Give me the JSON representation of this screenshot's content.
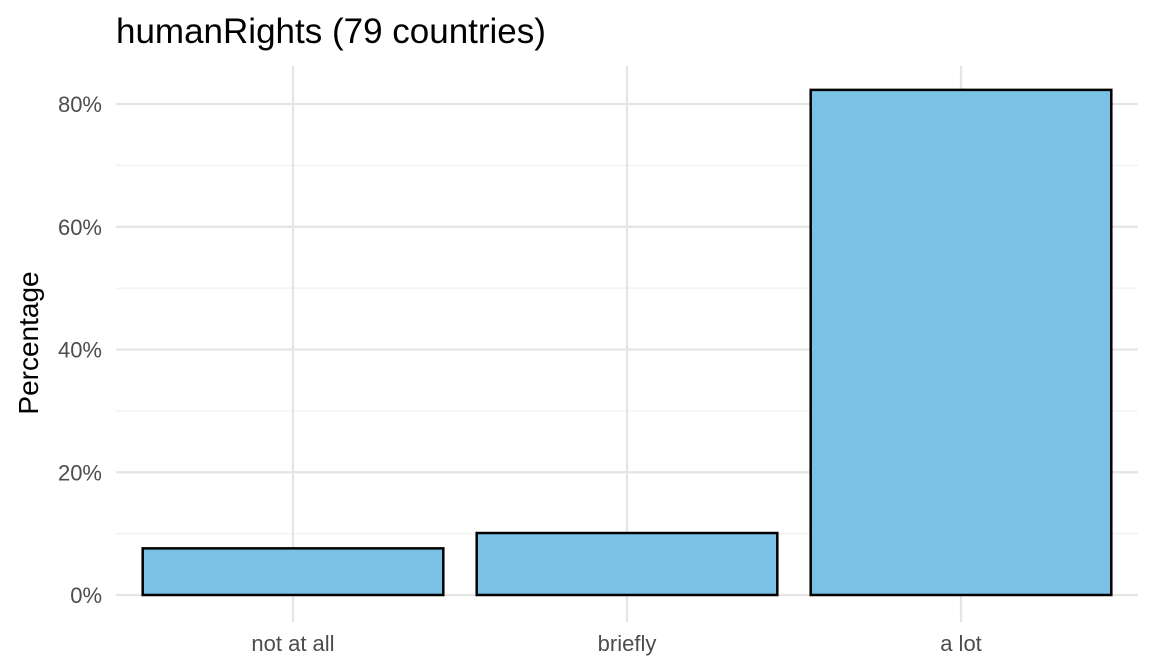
{
  "chart_data": {
    "type": "bar",
    "title": "humanRights (79 countries)",
    "xlabel": "",
    "ylabel": "Percentage",
    "categories": [
      "not at all",
      "briefly",
      "a lot"
    ],
    "values": [
      7.6,
      10.1,
      82.3
    ],
    "ylim": [
      0,
      86
    ],
    "yticks": [
      0,
      20,
      40,
      60,
      80
    ],
    "ytick_labels": [
      "0%",
      "20%",
      "40%",
      "60%",
      "80%"
    ],
    "bar_color": "#7AC2E5",
    "bar_outline": "#000000",
    "grid": true,
    "legend": "none"
  }
}
